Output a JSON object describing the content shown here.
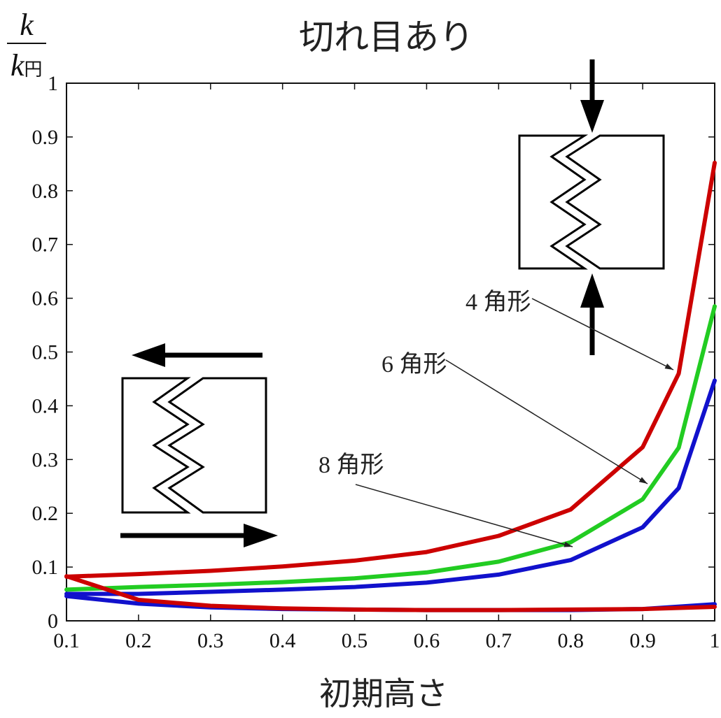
{
  "chart_data": {
    "type": "line",
    "title": "切れ目あり",
    "xlabel": "初期高さ",
    "ylabel": {
      "numerator": "k",
      "denominator": "k",
      "denominator_sub": "円"
    },
    "xlim": [
      0.1,
      1.0
    ],
    "ylim": [
      0,
      1
    ],
    "xticks": [
      "0.1",
      "0.2",
      "0.3",
      "0.4",
      "0.5",
      "0.6",
      "0.7",
      "0.8",
      "0.9",
      "1"
    ],
    "yticks": [
      "0",
      "0.1",
      "0.2",
      "0.3",
      "0.4",
      "0.5",
      "0.6",
      "0.7",
      "0.8",
      "0.9",
      "1"
    ],
    "grid": false,
    "colors": {
      "red": "#cc0000",
      "green": "#22cc22",
      "blue": "#1111cc"
    },
    "series": [
      {
        "color": "#cc0000",
        "x": [
          0.1,
          0.2,
          0.3,
          0.4,
          0.5,
          0.6,
          0.7,
          0.8,
          0.9,
          0.95,
          1.0
        ],
        "y": [
          0.082,
          0.087,
          0.093,
          0.101,
          0.112,
          0.128,
          0.158,
          0.207,
          0.323,
          0.46,
          0.852
        ]
      },
      {
        "color": "#22cc22",
        "x": [
          0.1,
          0.2,
          0.3,
          0.4,
          0.5,
          0.6,
          0.7,
          0.8,
          0.9,
          0.95,
          1.0
        ],
        "y": [
          0.058,
          0.063,
          0.067,
          0.072,
          0.079,
          0.09,
          0.11,
          0.146,
          0.226,
          0.322,
          0.585
        ]
      },
      {
        "color": "#1111cc",
        "x": [
          0.1,
          0.2,
          0.3,
          0.4,
          0.5,
          0.6,
          0.7,
          0.8,
          0.9,
          0.95,
          1.0
        ],
        "y": [
          0.05,
          0.05,
          0.054,
          0.058,
          0.063,
          0.071,
          0.086,
          0.113,
          0.174,
          0.247,
          0.447
        ]
      },
      {
        "color": "#1111cc",
        "x": [
          0.1,
          0.2,
          0.3,
          0.4,
          0.5,
          0.6,
          0.7,
          0.8,
          0.9,
          1.0
        ],
        "y": [
          0.046,
          0.032,
          0.025,
          0.022,
          0.021,
          0.02,
          0.02,
          0.02,
          0.022,
          0.031
        ]
      },
      {
        "color": "#cc0000",
        "x": [
          0.1,
          0.2,
          0.3,
          0.4,
          0.5,
          0.6,
          0.7,
          0.8,
          0.9,
          1.0
        ],
        "y": [
          0.083,
          0.039,
          0.028,
          0.023,
          0.021,
          0.02,
          0.02,
          0.021,
          0.022,
          0.026
        ]
      }
    ],
    "annotations": [
      {
        "text": "4 角形",
        "target": [
          0.955,
          0.46
        ]
      },
      {
        "text": "6 角形",
        "target": [
          0.91,
          0.25
        ]
      },
      {
        "text": "8 角形",
        "target": [
          0.82,
          0.135
        ]
      }
    ]
  }
}
